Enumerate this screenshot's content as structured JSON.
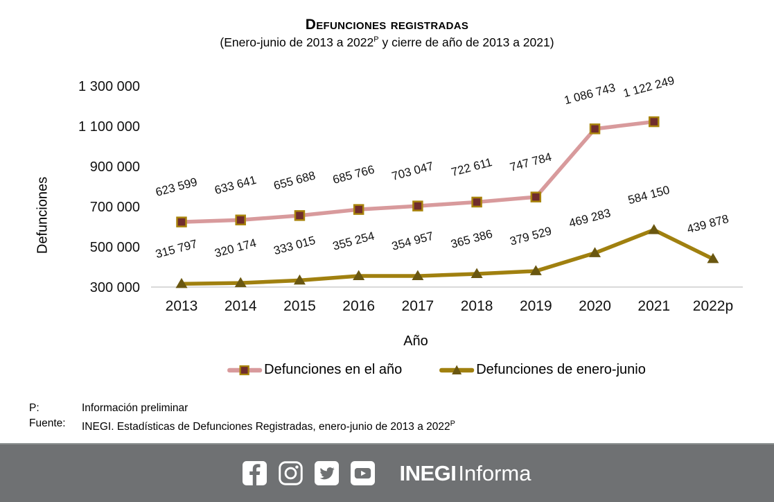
{
  "header": {
    "title": "Defunciones registradas",
    "subtitle_pre": "(Enero-junio de 2013 a 2022",
    "subtitle_sup": "P",
    "subtitle_post": " y cierre de año de 2013 a 2021)"
  },
  "chart_data": {
    "type": "line",
    "title": "Defunciones registradas",
    "xlabel": "Año",
    "ylabel": "Defunciones",
    "categories": [
      "2013",
      "2014",
      "2015",
      "2016",
      "2017",
      "2018",
      "2019",
      "2020",
      "2021",
      "2022p"
    ],
    "yticks": [
      300000,
      500000,
      700000,
      900000,
      1100000,
      1300000
    ],
    "ylim": [
      300000,
      1300000
    ],
    "grid": false,
    "legend_position": "bottom",
    "value_labels": true,
    "number_format": "space-thousands",
    "axis_line_color": "#D9D9D9",
    "series": [
      {
        "name": "Defunciones en el año",
        "marker": "square",
        "line_color": "#D89A9C",
        "marker_fill": "#702D2D",
        "marker_stroke": "#A9840C",
        "values": [
          623599,
          633641,
          655688,
          685766,
          703047,
          722611,
          747784,
          1086743,
          1122249
        ]
      },
      {
        "name": "Defunciones de enero-junio",
        "marker": "triangle",
        "line_color": "#A0800F",
        "marker_fill": "#6A5710",
        "marker_stroke": "#6A5710",
        "values": [
          315797,
          320174,
          333015,
          355254,
          354957,
          365386,
          379529,
          469283,
          584150,
          439878
        ]
      }
    ]
  },
  "footnotes": {
    "p_label": "P:",
    "p_text": "Información preliminar",
    "source_label": "Fuente:",
    "source_text": "INEGI. Estadísticas de Defunciones Registradas, enero-junio de 2013 a 2022",
    "source_sup": "P"
  },
  "footer": {
    "background_color": "#6F7173",
    "icons": [
      "facebook-icon",
      "instagram-icon",
      "twitter-icon",
      "youtube-icon"
    ],
    "brand_bold": "INEGI",
    "brand_light": "Informa"
  }
}
